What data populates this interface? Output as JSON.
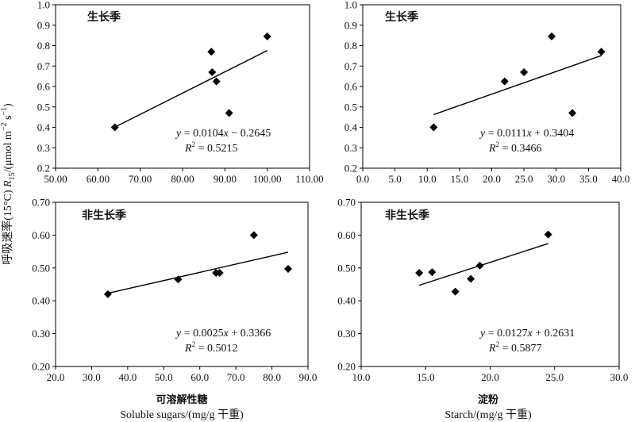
{
  "y_axis_label": {
    "prefix": "呼吸速率(15°C) ",
    "symbol": "R",
    "subscript": "15",
    "unit_main": "/(μmol m",
    "unit_exp1": "−2",
    "unit_mid": " s",
    "unit_exp2": "−1",
    "unit_end": ")"
  },
  "x_labels": {
    "left_cn": "可溶解性糖",
    "left_en": "Soluble sugars/(mg/g 干重)",
    "right_cn": "淀粉",
    "right_en": "Starch/(mg/g 干重)"
  },
  "chart_data": [
    {
      "type": "scatter",
      "title": "生长季",
      "xlim": [
        50,
        110
      ],
      "ylim": [
        0.2,
        1.0
      ],
      "x_ticks": [
        "50.00",
        "60.00",
        "70.00",
        "80.00",
        "90.00",
        "100.00",
        "110.00"
      ],
      "y_ticks": [
        "0.2",
        "0.3",
        "0.4",
        "0.5",
        "0.6",
        "0.7",
        "0.8",
        "0.9",
        "1.0"
      ],
      "x": [
        64.0,
        86.8,
        87.0,
        88.0,
        91.0,
        100.0
      ],
      "y": [
        0.4,
        0.77,
        0.67,
        0.625,
        0.47,
        0.845
      ],
      "trendline": {
        "slope": 0.0104,
        "intercept": -0.2645,
        "x_range": [
          64.0,
          100.0
        ]
      },
      "equation": {
        "slope_text": "0.0104",
        "sign": "−",
        "intercept_text": "0.2645",
        "r2": "0.5215"
      },
      "grid": false
    },
    {
      "type": "scatter",
      "title": "生长季",
      "xlim": [
        0,
        40
      ],
      "ylim": [
        0.2,
        1.0
      ],
      "x_ticks": [
        "0.0",
        "5.0",
        "10.0",
        "15.0",
        "20.0",
        "25.0",
        "30.0",
        "35.0",
        "40.0"
      ],
      "y_ticks": [
        "0.2",
        "0.3",
        "0.4",
        "0.5",
        "0.6",
        "0.7",
        "0.8",
        "0.9",
        "1.0"
      ],
      "x": [
        11.0,
        22.0,
        25.0,
        29.3,
        32.5,
        37.0
      ],
      "y": [
        0.4,
        0.625,
        0.67,
        0.845,
        0.47,
        0.77
      ],
      "trendline": {
        "slope": 0.0111,
        "intercept": 0.3404,
        "x_range": [
          11.0,
          37.0
        ]
      },
      "equation": {
        "slope_text": "0.0111",
        "sign": "+",
        "intercept_text": "0.3404",
        "r2": "0.3466"
      },
      "grid": false
    },
    {
      "type": "scatter",
      "title": "非生长季",
      "xlim": [
        20,
        90
      ],
      "ylim": [
        0.2,
        0.7
      ],
      "x_ticks": [
        "20.0",
        "30.0",
        "40.0",
        "50.0",
        "60.0",
        "70.0",
        "80.0",
        "90.0"
      ],
      "y_ticks": [
        "0.20",
        "0.30",
        "0.40",
        "0.50",
        "0.60",
        "0.70"
      ],
      "x": [
        34.5,
        54.0,
        64.5,
        65.5,
        75.0,
        84.5
      ],
      "y": [
        0.42,
        0.465,
        0.485,
        0.485,
        0.6,
        0.497
      ],
      "trendline": {
        "slope": 0.0025,
        "intercept": 0.3366,
        "x_range": [
          34.5,
          84.5
        ]
      },
      "equation": {
        "slope_text": "0.0025",
        "sign": "+",
        "intercept_text": "0.3366",
        "r2": "0.5012"
      },
      "grid": false
    },
    {
      "type": "scatter",
      "title": "非生长季",
      "xlim": [
        10,
        30
      ],
      "ylim": [
        0.2,
        0.7
      ],
      "x_ticks": [
        "10.0",
        "15.0",
        "20.0",
        "25.0",
        "30.0"
      ],
      "y_ticks": [
        "0.20",
        "0.30",
        "0.40",
        "0.50",
        "0.60",
        "0.70"
      ],
      "x": [
        14.5,
        15.5,
        17.3,
        18.5,
        19.2,
        24.5
      ],
      "y": [
        0.485,
        0.487,
        0.428,
        0.467,
        0.507,
        0.602
      ],
      "trendline": {
        "slope": 0.0127,
        "intercept": 0.2631,
        "x_range": [
          14.5,
          24.5
        ]
      },
      "equation": {
        "slope_text": "0.0127",
        "sign": "+",
        "intercept_text": "0.2631",
        "r2": "0.5877"
      },
      "grid": false
    }
  ]
}
